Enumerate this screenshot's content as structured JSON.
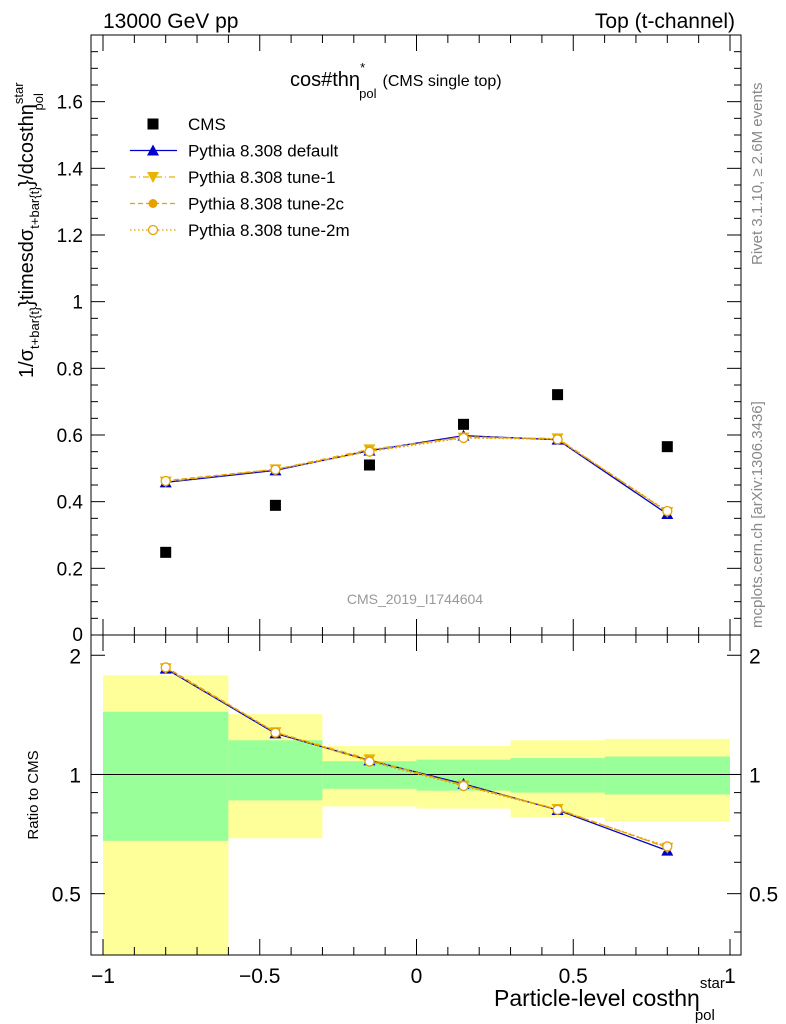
{
  "header": {
    "left": "13000 GeV pp",
    "right": "Top (t-channel)"
  },
  "side": {
    "rivet": "Rivet 3.1.10, ≥ 2.6M events",
    "mcplots": "mcplots.cern.ch [arXiv:1306.3436]"
  },
  "chart_data": [
    {
      "panel": "main",
      "type": "scatter",
      "title": {
        "main": "cos#thη",
        "sup": "*",
        "sub": "pol",
        "suffix": "(CMS single top)"
      },
      "watermark": "CMS_2019_I1744604",
      "ylabel": {
        "p1": "1/σ",
        "s1": "t+bar{t}",
        "p2": "}timesdσ",
        "s2": "t+bar{t}",
        "p3": "}/dcosthη",
        "s3": "pol",
        "sup3": "star"
      },
      "xlim": [
        -1.0,
        1.0
      ],
      "ylim": [
        0.0,
        1.8
      ],
      "xticks": [
        -1,
        -0.5,
        0,
        0.5,
        1
      ],
      "yticks": [
        0.2,
        0.4,
        0.6,
        0.8,
        1.0,
        1.2,
        1.4,
        1.6
      ],
      "ytick_labels": [
        "0.2",
        "0.4",
        "0.6",
        "0.8",
        "1",
        "1.2",
        "1.4",
        "1.6"
      ],
      "zero_label": "0",
      "x": [
        -0.8,
        -0.45,
        -0.15,
        0.15,
        0.45,
        0.8
      ],
      "bins": [
        -1.0,
        -0.6,
        -0.3,
        0.0,
        0.3,
        0.6,
        1.0
      ],
      "legend_position": "top-left",
      "series": [
        {
          "name": "CMS",
          "marker": "square",
          "color": "#000000",
          "values": [
            0.248,
            0.389,
            0.51,
            0.632,
            0.721,
            0.565
          ]
        },
        {
          "name": "Pythia 8.308 default",
          "marker": "triangle-up",
          "color": "#0000cc",
          "line": "solid",
          "values": [
            0.458,
            0.494,
            0.553,
            0.598,
            0.586,
            0.363
          ]
        },
        {
          "name": "Pythia 8.308 tune-1",
          "marker": "triangle-down",
          "color": "#e8b400",
          "line": "dashdot",
          "values": [
            0.46,
            0.497,
            0.557,
            0.592,
            0.59,
            0.369
          ]
        },
        {
          "name": "Pythia 8.308 tune-2c",
          "marker": "circle",
          "color": "#e8a000",
          "line": "dashed",
          "values": [
            0.463,
            0.497,
            0.552,
            0.595,
            0.588,
            0.37
          ]
        },
        {
          "name": "Pythia 8.308 tune-2m",
          "marker": "open-circle",
          "color": "#e8a000",
          "line": "dotted",
          "values": [
            0.462,
            0.496,
            0.55,
            0.591,
            0.587,
            0.372
          ]
        }
      ]
    },
    {
      "panel": "ratio",
      "type": "line",
      "ylabel": "Ratio to CMS",
      "xlabel": {
        "main": "Particle-level costhη",
        "sub": "pol",
        "sup": "star"
      },
      "xlim": [
        -1.0,
        1.0
      ],
      "ylim": [
        0.35,
        2.25
      ],
      "xticks": [
        -1,
        -0.5,
        0,
        0.5,
        1
      ],
      "xtick_labels": [
        "−1",
        "−0.5",
        "0",
        "0.5",
        "1"
      ],
      "yticks": [
        0.5,
        1,
        2
      ],
      "ytick_labels": [
        "0.5",
        "1",
        "2"
      ],
      "bins": [
        -1.0,
        -0.6,
        -0.3,
        0.0,
        0.3,
        0.6,
        1.0
      ],
      "band_inner": [
        [
          0.68,
          1.44
        ],
        [
          0.86,
          1.22
        ],
        [
          0.92,
          1.08
        ],
        [
          0.91,
          1.09
        ],
        [
          0.9,
          1.1
        ],
        [
          0.89,
          1.11
        ]
      ],
      "band_outer": [
        [
          0.35,
          1.78
        ],
        [
          0.69,
          1.42
        ],
        [
          0.83,
          1.18
        ],
        [
          0.82,
          1.18
        ],
        [
          0.78,
          1.22
        ],
        [
          0.76,
          1.23
        ]
      ],
      "band_inner_color": "#99ff99",
      "band_outer_color": "#ffff99",
      "x": [
        -0.8,
        -0.45,
        -0.15,
        0.15,
        0.45,
        0.8
      ],
      "series": [
        {
          "name": "Pythia 8.308 default",
          "color": "#0000cc",
          "values": [
            1.85,
            1.27,
            1.085,
            0.947,
            0.813,
            0.642
          ]
        },
        {
          "name": "Pythia 8.308 tune-1",
          "color": "#e8b400",
          "values": [
            1.855,
            1.278,
            1.092,
            0.937,
            0.818,
            0.653
          ]
        },
        {
          "name": "Pythia 8.308 tune-2c",
          "color": "#e8a000",
          "values": [
            1.867,
            1.278,
            1.082,
            0.941,
            0.816,
            0.655
          ]
        },
        {
          "name": "Pythia 8.308 tune-2m",
          "color": "#e8a000",
          "values": [
            1.863,
            1.275,
            1.078,
            0.935,
            0.814,
            0.658
          ]
        }
      ]
    }
  ]
}
